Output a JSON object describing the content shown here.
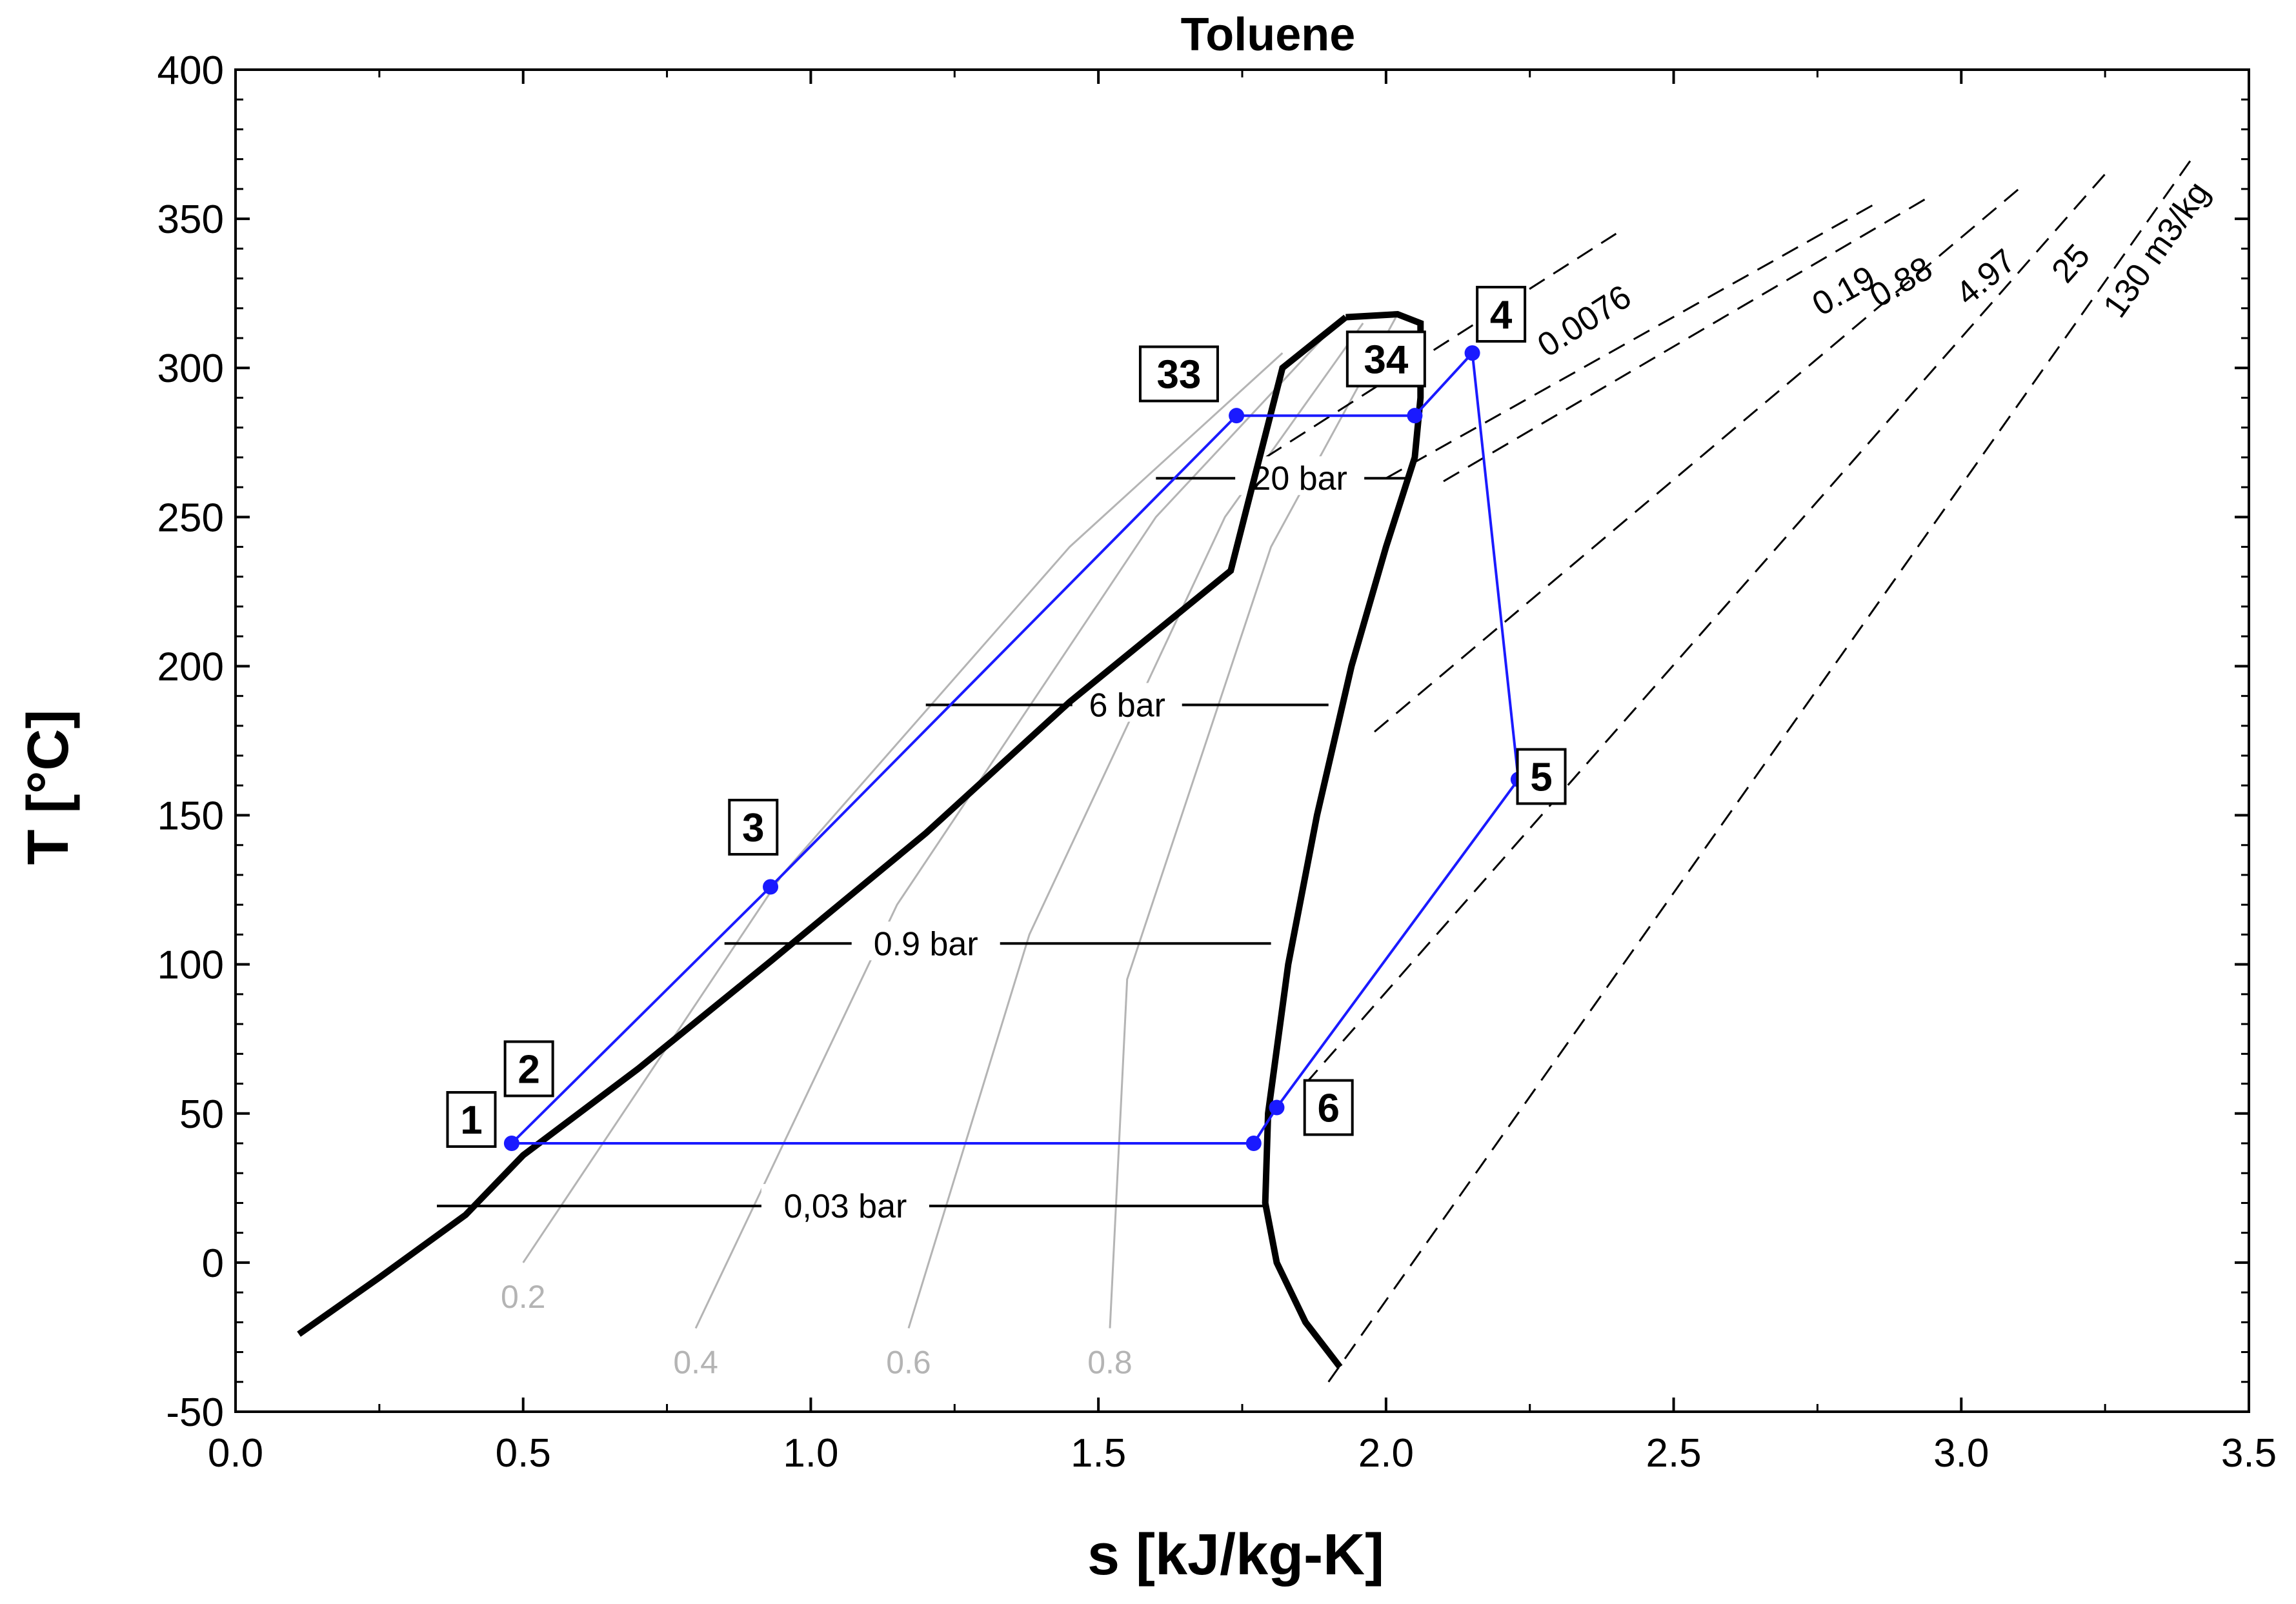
{
  "chart_data": {
    "type": "line",
    "title": "Toluene",
    "xlabel": "s [kJ/kg-K]",
    "ylabel": "T [°C]",
    "xlim": [
      0.0,
      3.5
    ],
    "ylim": [
      -50,
      400
    ],
    "x_ticks": [
      {
        "value": 0.0,
        "label": "0.0"
      },
      {
        "value": 0.5,
        "label": "0.5"
      },
      {
        "value": 1.0,
        "label": "1.0"
      },
      {
        "value": 1.5,
        "label": "1.5"
      },
      {
        "value": 2.0,
        "label": "2.0"
      },
      {
        "value": 2.5,
        "label": "2.5"
      },
      {
        "value": 3.0,
        "label": "3.0"
      },
      {
        "value": 3.5,
        "label": "3.5"
      }
    ],
    "y_ticks": [
      {
        "value": -50,
        "label": "-50"
      },
      {
        "value": 0,
        "label": "0"
      },
      {
        "value": 50,
        "label": "50"
      },
      {
        "value": 100,
        "label": "100"
      },
      {
        "value": 150,
        "label": "150"
      },
      {
        "value": 200,
        "label": "200"
      },
      {
        "value": 250,
        "label": "250"
      },
      {
        "value": 300,
        "label": "300"
      },
      {
        "value": 350,
        "label": "350"
      },
      {
        "value": 400,
        "label": "400"
      }
    ],
    "grid": false,
    "colors": {
      "cycle": "#1a1aff",
      "dome": "#000000",
      "isobar": "#000000",
      "isochore": "#000000",
      "quality": "#b4b4b4"
    },
    "saturation_dome": {
      "liquid": [
        [
          0.11,
          -24
        ],
        [
          0.25,
          -5
        ],
        [
          0.4,
          16
        ],
        [
          0.5,
          36
        ],
        [
          0.7,
          65
        ],
        [
          0.93,
          101
        ],
        [
          1.2,
          144
        ],
        [
          1.45,
          188
        ],
        [
          1.73,
          232
        ],
        [
          1.82,
          300
        ],
        [
          1.93,
          317
        ]
      ],
      "vapor": [
        [
          1.93,
          317
        ],
        [
          2.02,
          318
        ],
        [
          2.06,
          315
        ],
        [
          2.06,
          290
        ],
        [
          2.05,
          270
        ],
        [
          2.0,
          240
        ],
        [
          1.94,
          200
        ],
        [
          1.88,
          150
        ],
        [
          1.83,
          100
        ],
        [
          1.795,
          50
        ],
        [
          1.79,
          20
        ],
        [
          1.81,
          0
        ],
        [
          1.86,
          -20
        ],
        [
          1.92,
          -35
        ]
      ]
    },
    "cycle_points": [
      {
        "label": "1",
        "s": 0.48,
        "T": 40,
        "marker": true,
        "label_pos": [
          0.41,
          48
        ]
      },
      {
        "label": "2",
        "s": 0.5,
        "T": 41,
        "marker": false,
        "label_pos": [
          0.51,
          65
        ]
      },
      {
        "label": "3",
        "s": 0.93,
        "T": 126,
        "marker": true,
        "label_pos": [
          0.9,
          146
        ]
      },
      {
        "label": "33",
        "s": 1.74,
        "T": 284,
        "marker": true,
        "label_pos": [
          1.64,
          298
        ]
      },
      {
        "label": "34",
        "s": 2.05,
        "T": 284,
        "marker": true,
        "label_pos": [
          2.0,
          303
        ]
      },
      {
        "label": "4",
        "s": 2.15,
        "T": 305,
        "marker": true,
        "label_pos": [
          2.2,
          318
        ]
      },
      {
        "label": "5",
        "s": 2.23,
        "T": 162,
        "marker": true,
        "label_pos": [
          2.27,
          163
        ]
      },
      {
        "label": "6",
        "s": 1.81,
        "T": 52,
        "marker": true,
        "label_pos": [
          1.9,
          52
        ]
      },
      {
        "label": "",
        "s": 1.77,
        "T": 40,
        "marker": true,
        "label_pos": null
      }
    ],
    "cycle_path": [
      [
        0.48,
        40
      ],
      [
        0.93,
        126
      ],
      [
        1.74,
        284
      ],
      [
        2.05,
        284
      ],
      [
        2.15,
        305
      ],
      [
        2.23,
        162
      ],
      [
        1.81,
        52
      ],
      [
        1.77,
        40
      ],
      [
        0.48,
        40
      ]
    ],
    "isobars": [
      {
        "label": "20 bar",
        "label_at": [
          1.85,
          263
        ],
        "points": [
          [
            1.6,
            263
          ],
          [
            1.9,
            263
          ],
          [
            2.04,
            263
          ]
        ]
      },
      {
        "label": "6 bar",
        "label_at": [
          1.55,
          187
        ],
        "points": [
          [
            1.2,
            187
          ],
          [
            1.9,
            187
          ]
        ]
      },
      {
        "label": "0.9 bar",
        "label_at": [
          1.2,
          107
        ],
        "points": [
          [
            0.85,
            107
          ],
          [
            1.8,
            107
          ]
        ]
      },
      {
        "label": "0,03 bar",
        "label_at": [
          1.06,
          19
        ],
        "points": [
          [
            0.35,
            19
          ],
          [
            1.79,
            19
          ]
        ]
      }
    ],
    "isochores": [
      {
        "label": "0.0076",
        "points": [
          [
            1.75,
            265
          ],
          [
            2.4,
            345
          ]
        ]
      },
      {
        "label": "0.19",
        "points": [
          [
            2.0,
            263
          ],
          [
            2.85,
            355
          ]
        ]
      },
      {
        "label": "0.88",
        "points": [
          [
            2.1,
            262
          ],
          [
            2.95,
            358
          ]
        ]
      },
      {
        "label": "4.97",
        "points": [
          [
            1.98,
            178
          ],
          [
            3.1,
            360
          ]
        ]
      },
      {
        "label": "25",
        "points": [
          [
            1.86,
            60
          ],
          [
            3.25,
            365
          ]
        ]
      },
      {
        "label": "130 m3/kg",
        "points": [
          [
            1.9,
            -40
          ],
          [
            3.4,
            370
          ]
        ]
      }
    ],
    "quality_lines": [
      {
        "label": "0.2",
        "points": [
          [
            0.5,
            0
          ],
          [
            0.95,
            130
          ],
          [
            1.45,
            240
          ],
          [
            1.82,
            305
          ]
        ]
      },
      {
        "label": "0.4",
        "points": [
          [
            0.8,
            -22
          ],
          [
            1.15,
            120
          ],
          [
            1.6,
            250
          ],
          [
            1.9,
            312
          ]
        ]
      },
      {
        "label": "0.6",
        "points": [
          [
            1.17,
            -22
          ],
          [
            1.38,
            110
          ],
          [
            1.72,
            250
          ],
          [
            1.96,
            315
          ]
        ]
      },
      {
        "label": "0.8",
        "points": [
          [
            1.52,
            -22
          ],
          [
            1.55,
            95
          ],
          [
            1.8,
            240
          ],
          [
            2.02,
            318
          ]
        ]
      }
    ]
  }
}
